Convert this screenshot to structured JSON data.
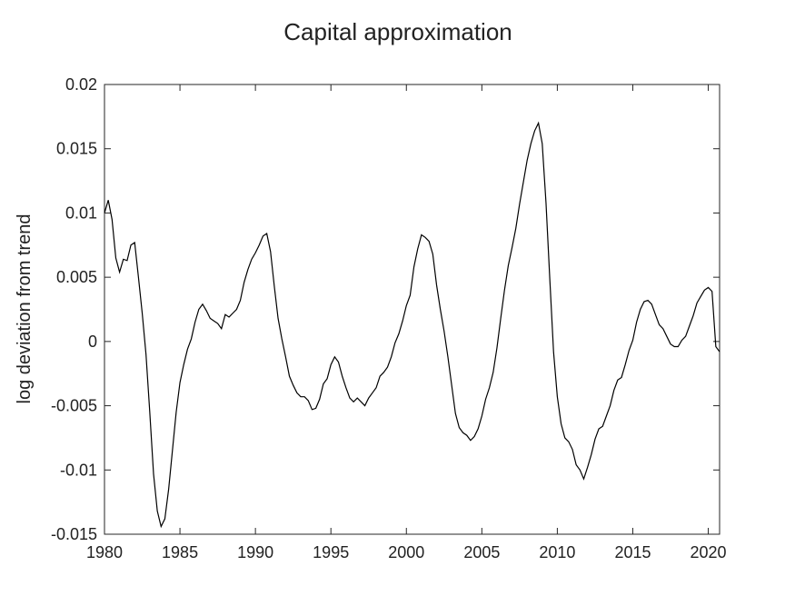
{
  "chart_data": {
    "type": "line",
    "title": "Capital approximation",
    "y_label": "log deviation from trend",
    "x": [
      1980,
      1980.25,
      1980.5,
      1980.75,
      1981,
      1981.25,
      1981.5,
      1981.75,
      1982,
      1982.25,
      1982.5,
      1982.75,
      1983,
      1983.25,
      1983.5,
      1983.75,
      1984,
      1984.25,
      1984.5,
      1984.75,
      1985,
      1985.25,
      1985.5,
      1985.75,
      1986,
      1986.25,
      1986.5,
      1986.75,
      1987,
      1987.25,
      1987.5,
      1987.75,
      1988,
      1988.25,
      1988.5,
      1988.75,
      1989,
      1989.25,
      1989.5,
      1989.75,
      1990,
      1990.25,
      1990.5,
      1990.75,
      1991,
      1991.25,
      1991.5,
      1991.75,
      1992,
      1992.25,
      1992.5,
      1992.75,
      1993,
      1993.25,
      1993.5,
      1993.75,
      1994,
      1994.25,
      1994.5,
      1994.75,
      1995,
      1995.25,
      1995.5,
      1995.75,
      1996,
      1996.25,
      1996.5,
      1996.75,
      1997,
      1997.25,
      1997.5,
      1997.75,
      1998,
      1998.25,
      1998.5,
      1998.75,
      1999,
      1999.25,
      1999.5,
      1999.75,
      2000,
      2000.25,
      2000.5,
      2000.75,
      2001,
      2001.25,
      2001.5,
      2001.75,
      2002,
      2002.25,
      2002.5,
      2002.75,
      2003,
      2003.25,
      2003.5,
      2003.75,
      2004,
      2004.25,
      2004.5,
      2004.75,
      2005,
      2005.25,
      2005.5,
      2005.75,
      2006,
      2006.25,
      2006.5,
      2006.75,
      2007,
      2007.25,
      2007.5,
      2007.75,
      2008,
      2008.25,
      2008.5,
      2008.75,
      2009,
      2009.25,
      2009.5,
      2009.75,
      2010,
      2010.25,
      2010.5,
      2010.75,
      2011,
      2011.25,
      2011.5,
      2011.75,
      2012,
      2012.25,
      2012.5,
      2012.75,
      2013,
      2013.25,
      2013.5,
      2013.75,
      2014,
      2014.25,
      2014.5,
      2014.75,
      2015,
      2015.25,
      2015.5,
      2015.75,
      2016,
      2016.25,
      2016.5,
      2016.75,
      2017,
      2017.25,
      2017.5,
      2017.75,
      2018,
      2018.25,
      2018.5,
      2018.75,
      2019,
      2019.25,
      2019.5,
      2019.75,
      2020,
      2020.25,
      2020.5,
      2020.75
    ],
    "series": [
      {
        "color": "#000000",
        "values": [
          0.01,
          0.011,
          0.0095,
          0.0065,
          0.0054,
          0.0064,
          0.0063,
          0.0075,
          0.0077,
          0.005,
          0.0022,
          -0.001,
          -0.0055,
          -0.0103,
          -0.0132,
          -0.0144,
          -0.0138,
          -0.0115,
          -0.0085,
          -0.0055,
          -0.0032,
          -0.0018,
          -0.0006,
          0.0002,
          0.0015,
          0.0025,
          0.0029,
          0.0024,
          0.0018,
          0.0016,
          0.0014,
          0.001,
          0.0021,
          0.0019,
          0.0022,
          0.0025,
          0.0032,
          0.0046,
          0.0056,
          0.0064,
          0.0069,
          0.0075,
          0.0082,
          0.0084,
          0.007,
          0.0043,
          0.0018,
          0.0002,
          -0.0012,
          -0.0027,
          -0.0034,
          -0.004,
          -0.0043,
          -0.0043,
          -0.0046,
          -0.0053,
          -0.0052,
          -0.0045,
          -0.0033,
          -0.0029,
          -0.0018,
          -0.0012,
          -0.0016,
          -0.0027,
          -0.0036,
          -0.0044,
          -0.0047,
          -0.0044,
          -0.0047,
          -0.005,
          -0.0044,
          -0.004,
          -0.0036,
          -0.0027,
          -0.0024,
          -0.002,
          -0.0012,
          -0.0001,
          0.0006,
          0.0016,
          0.0028,
          0.0036,
          0.0058,
          0.0072,
          0.0083,
          0.0081,
          0.0078,
          0.0068,
          0.0044,
          0.0025,
          0.0008,
          -0.0012,
          -0.0034,
          -0.0056,
          -0.0067,
          -0.0071,
          -0.0073,
          -0.0077,
          -0.0074,
          -0.0068,
          -0.0058,
          -0.0045,
          -0.0036,
          -0.0024,
          -0.0005,
          0.0018,
          0.004,
          0.0059,
          0.0073,
          0.0088,
          0.0107,
          0.0124,
          0.0141,
          0.0154,
          0.0164,
          0.017,
          0.0154,
          0.0108,
          0.0049,
          -0.0008,
          -0.0043,
          -0.0064,
          -0.0075,
          -0.0078,
          -0.0084,
          -0.0096,
          -0.01,
          -0.0107,
          -0.0098,
          -0.0088,
          -0.0076,
          -0.0068,
          -0.0066,
          -0.0058,
          -0.005,
          -0.0038,
          -0.003,
          -0.0028,
          -0.0018,
          -0.0007,
          0.0001,
          0.0015,
          0.0025,
          0.0031,
          0.0032,
          0.0029,
          0.0021,
          0.0013,
          0.001,
          0.0004,
          -0.0002,
          -0.0004,
          -0.0004,
          0.0001,
          0.0004,
          0.0012,
          0.002,
          0.003,
          0.0035,
          0.004,
          0.0042,
          0.0039,
          -0.0004,
          -0.0008
        ]
      }
    ],
    "xlim": [
      1980,
      2020.75
    ],
    "xticks": [
      1980,
      1985,
      1990,
      1995,
      2000,
      2005,
      2010,
      2015,
      2020
    ],
    "ylim": [
      -0.015,
      0.02
    ],
    "yticks": [
      -0.015,
      -0.01,
      -0.005,
      0,
      0.005,
      0.01,
      0.015,
      0.02
    ]
  }
}
